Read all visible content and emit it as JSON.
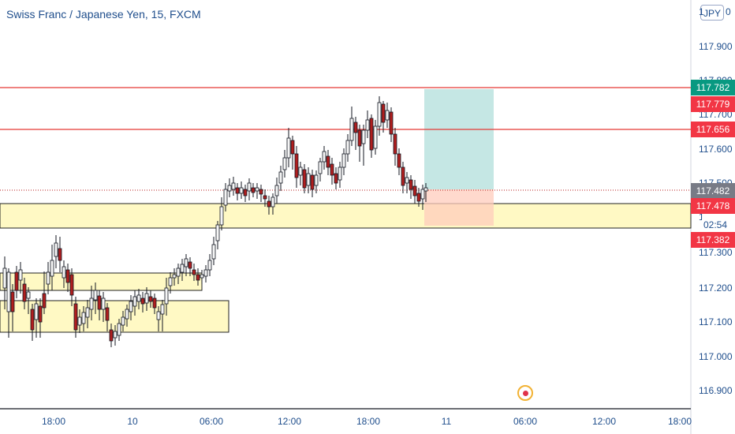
{
  "header": {
    "title": "Swiss Franc / Japanese Yen, 15, FXCM",
    "currency": "JPY"
  },
  "y_axis": {
    "ticks": [
      "117.900",
      "117.800",
      "117.700",
      "117.600",
      "117.500",
      "117.300",
      "117.200",
      "117.100",
      "117.000",
      "116.900"
    ],
    "top_partial_label": "1",
    "top_partial_label_right": "0",
    "mid_partial_label": "1"
  },
  "x_axis": {
    "ticks": [
      "18:00",
      "10",
      "06:00",
      "12:00",
      "18:00",
      "11",
      "06:00",
      "12:00",
      "18:00"
    ]
  },
  "price_labels": [
    {
      "id": "tp",
      "text": "117.782",
      "color": "#089981",
      "price": 117.782
    },
    {
      "id": "res1",
      "text": "117.779",
      "color": "#f23645",
      "price": 117.779
    },
    {
      "id": "res2",
      "text": "117.656",
      "color": "#f23645",
      "price": 117.656
    },
    {
      "id": "current",
      "text": "117.482",
      "color": "#787b86",
      "price": 117.482
    },
    {
      "id": "entry",
      "text": "117.478",
      "color": "#f23645",
      "price": 117.478
    },
    {
      "id": "sl",
      "text": "117.382",
      "color": "#f23645",
      "price": 117.382
    }
  ],
  "countdown": "02:54",
  "colors": {
    "up_candle": "#f5f5f5",
    "down_candle": "#b01e1e",
    "resistance_line": "#e53935",
    "support_zone": "#fff9c4",
    "profit_zone": "#b2dfdb",
    "loss_zone": "#ffccbc",
    "axis_text": "#1f4e8c"
  },
  "icons": {
    "record": "record-dot-icon"
  }
}
